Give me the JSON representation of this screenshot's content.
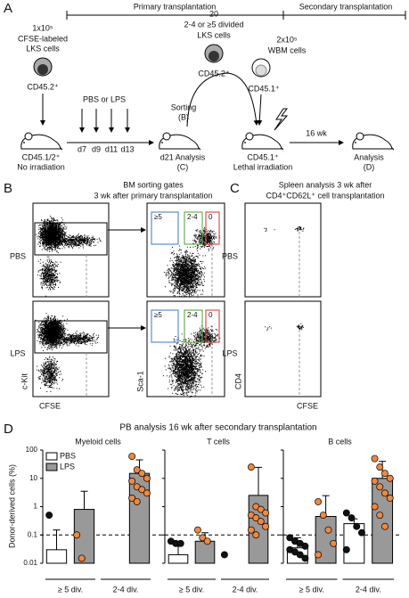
{
  "panel_a": {
    "label": "A",
    "primary": "Primary transplantation",
    "secondary": "Secondary transplantation",
    "donor_lines": [
      "1x10⁵",
      "CFSE-labeled",
      "LKS cells"
    ],
    "donor_marker": "CD45.2⁺",
    "recipient_lines": [
      "CD45.1/2⁺",
      "No irradiation"
    ],
    "treatment": "PBS or LPS",
    "days": [
      "d7",
      "d9",
      "d11",
      "d13"
    ],
    "sorting_lines": [
      "Sorting",
      "(B)"
    ],
    "analysis_c_lines": [
      "d21 Analysis",
      "(C)"
    ],
    "sorted_lines": [
      "20",
      "2-4 or ≥5 divided",
      "LKS cells"
    ],
    "sorted_marker": "CD45.2⁺",
    "wbm_lines": [
      "2x10⁵",
      "WBM cells"
    ],
    "wbm_marker": "CD45.1⁺",
    "secondary_recipient_lines": [
      "CD45.1⁺",
      "Lethal irradiation"
    ],
    "interval": "16 wk",
    "analysis_d_lines": [
      "Analysis",
      "(D)"
    ]
  },
  "panel_b": {
    "label": "B",
    "title_lines": [
      "BM sorting gates",
      "3 wk after primary transplantation"
    ],
    "rows": [
      "PBS",
      "LPS"
    ],
    "gates": [
      "≥5",
      "2-4",
      "0"
    ],
    "x_label": "CFSE",
    "y_label_left": "c-Kit",
    "y_label_right": "Sca-1"
  },
  "panel_c": {
    "label": "C",
    "title_lines": [
      "Spleen analysis 3 wk after",
      "CD4⁺CD62L⁺ cell transplantation"
    ],
    "rows": [
      "PBS",
      "LPS"
    ],
    "x_label": "CFSE",
    "y_label": "CD4"
  },
  "panel_d": {
    "label": "D",
    "type": "bar",
    "title": "PB analysis 16 wk after secondary transplantation",
    "y_label": "Donor-derived cells (%)",
    "log_scale": true,
    "ylim": [
      0.01,
      100
    ],
    "yticks": [
      0.01,
      0.1,
      1,
      10,
      100
    ],
    "threshold": 0.1,
    "series": [
      {
        "name": "PBS",
        "color": "#ffffff",
        "point_color": "#111111"
      },
      {
        "name": "LPS",
        "color": "#999999",
        "point_color": "#f0883e"
      }
    ],
    "groups": [
      "≥ 5 div.",
      "2-4 div."
    ],
    "subpanels": [
      {
        "title": "Myeloid cells",
        "bars": [
          [
            0.03,
            0.8
          ],
          [
            null,
            15
          ]
        ],
        "errors": [
          [
            0.12,
            2.7
          ],
          [
            null,
            30
          ]
        ],
        "points": [
          [
            [
              0.5
            ],
            [
              0.1,
              0.015
            ]
          ],
          [
            [],
            [
              60,
              20,
              15,
              10,
              8,
              5,
              4,
              3,
              2,
              1.5
            ]
          ]
        ]
      },
      {
        "title": "T cells",
        "bars": [
          [
            0.02,
            0.06
          ],
          [
            null,
            2.5
          ]
        ],
        "errors": [
          [
            0.02,
            0.06
          ],
          [
            null,
            22
          ]
        ],
        "points": [
          [
            [
              0.06,
              0.05,
              0.05
            ],
            [
              0.15,
              0.08,
              0.06
            ]
          ],
          [
            [
              0.02
            ],
            [
              25,
              1,
              0.8,
              0.6,
              0.5,
              0.4,
              0.3,
              0.2,
              0.15,
              0.1
            ]
          ]
        ]
      },
      {
        "title": "B cells",
        "bars": [
          [
            0.035,
            0.45
          ],
          [
            0.25,
            10
          ]
        ],
        "errors": [
          [
            0.045,
            2
          ],
          [
            0.12,
            30
          ]
        ],
        "points": [
          [
            [
              0.08,
              0.06,
              0.05,
              0.04,
              0.03,
              0.025,
              0.02,
              0.015
            ],
            [
              1.5,
              0.5,
              0.15,
              0.05,
              0.02
            ]
          ],
          [
            [
              0.6,
              0.4,
              0.2,
              0.12,
              0.03
            ],
            [
              50,
              25,
              15,
              10,
              8,
              5,
              3,
              2,
              1,
              0.5,
              0.2
            ]
          ]
        ]
      }
    ]
  }
}
